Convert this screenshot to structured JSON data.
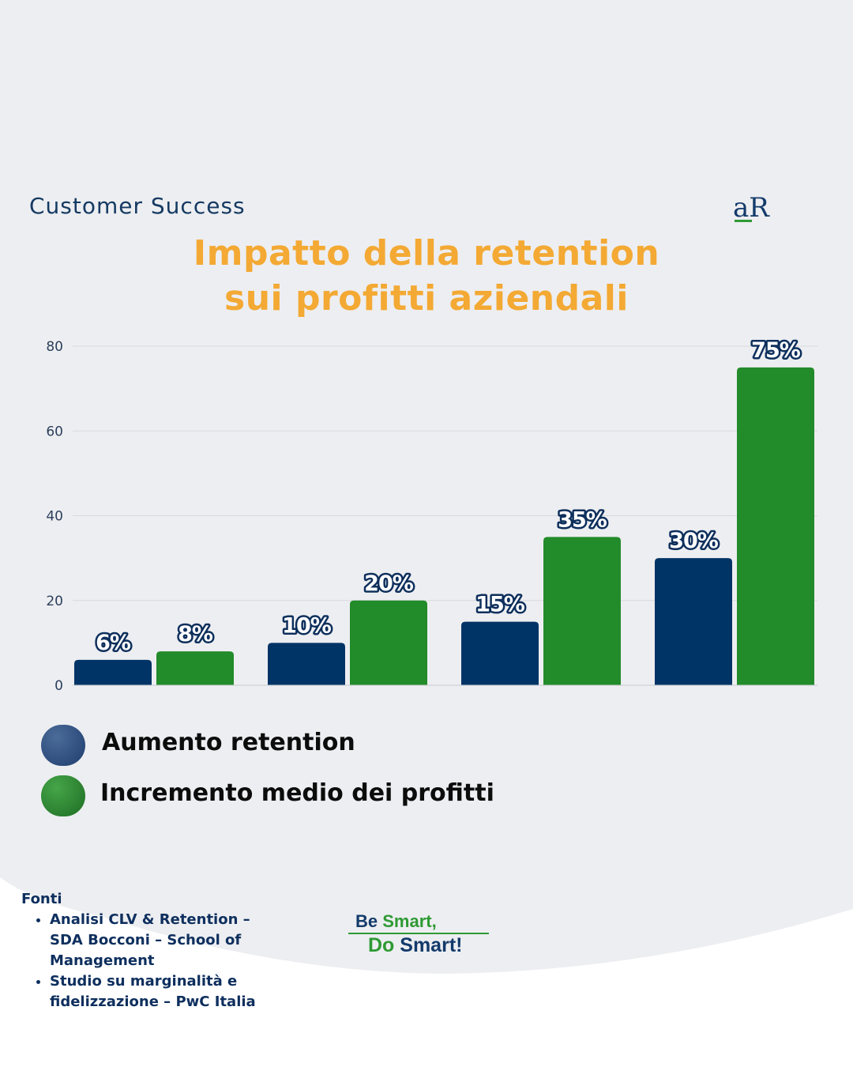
{
  "header": {
    "category": "Customer Success",
    "logo_text": "aR",
    "title_line1": "Impatto della retention",
    "title_line2": "sui profitti aziendali"
  },
  "colors": {
    "navy": "#003366",
    "green": "#228b2a",
    "title_orange": "#f3a933",
    "background": "#edeef1"
  },
  "chart_data": {
    "type": "bar",
    "categories": [
      "",
      "",
      "",
      ""
    ],
    "series": [
      {
        "name": "Aumento retention",
        "values": [
          6,
          10,
          15,
          30
        ],
        "labels": [
          "6%",
          "10%",
          "15%",
          "30%"
        ],
        "color": "#003366"
      },
      {
        "name": "Incremento medio dei profitti",
        "values": [
          8,
          20,
          35,
          75
        ],
        "labels": [
          "8%",
          "20%",
          "35%",
          "75%"
        ],
        "color": "#228b2a"
      }
    ],
    "yticks": [
      "0",
      "20",
      "40",
      "60",
      "80"
    ],
    "ylim": [
      0,
      80
    ],
    "grid": true,
    "legend_position": "bottom-left"
  },
  "legend": {
    "item1": "Aumento retention",
    "item2": "Incremento medio dei profitti"
  },
  "sources": {
    "heading": "Fonti",
    "item1": "Analisi CLV & Retention – SDA Bocconi – School of Management",
    "item2": "Studio su marginalità e fidelizzazione – PwC Italia"
  },
  "slogan": {
    "be": "Be",
    "smart_comma": "Smart,",
    "do": "Do",
    "smart_excl": "Smart!"
  }
}
